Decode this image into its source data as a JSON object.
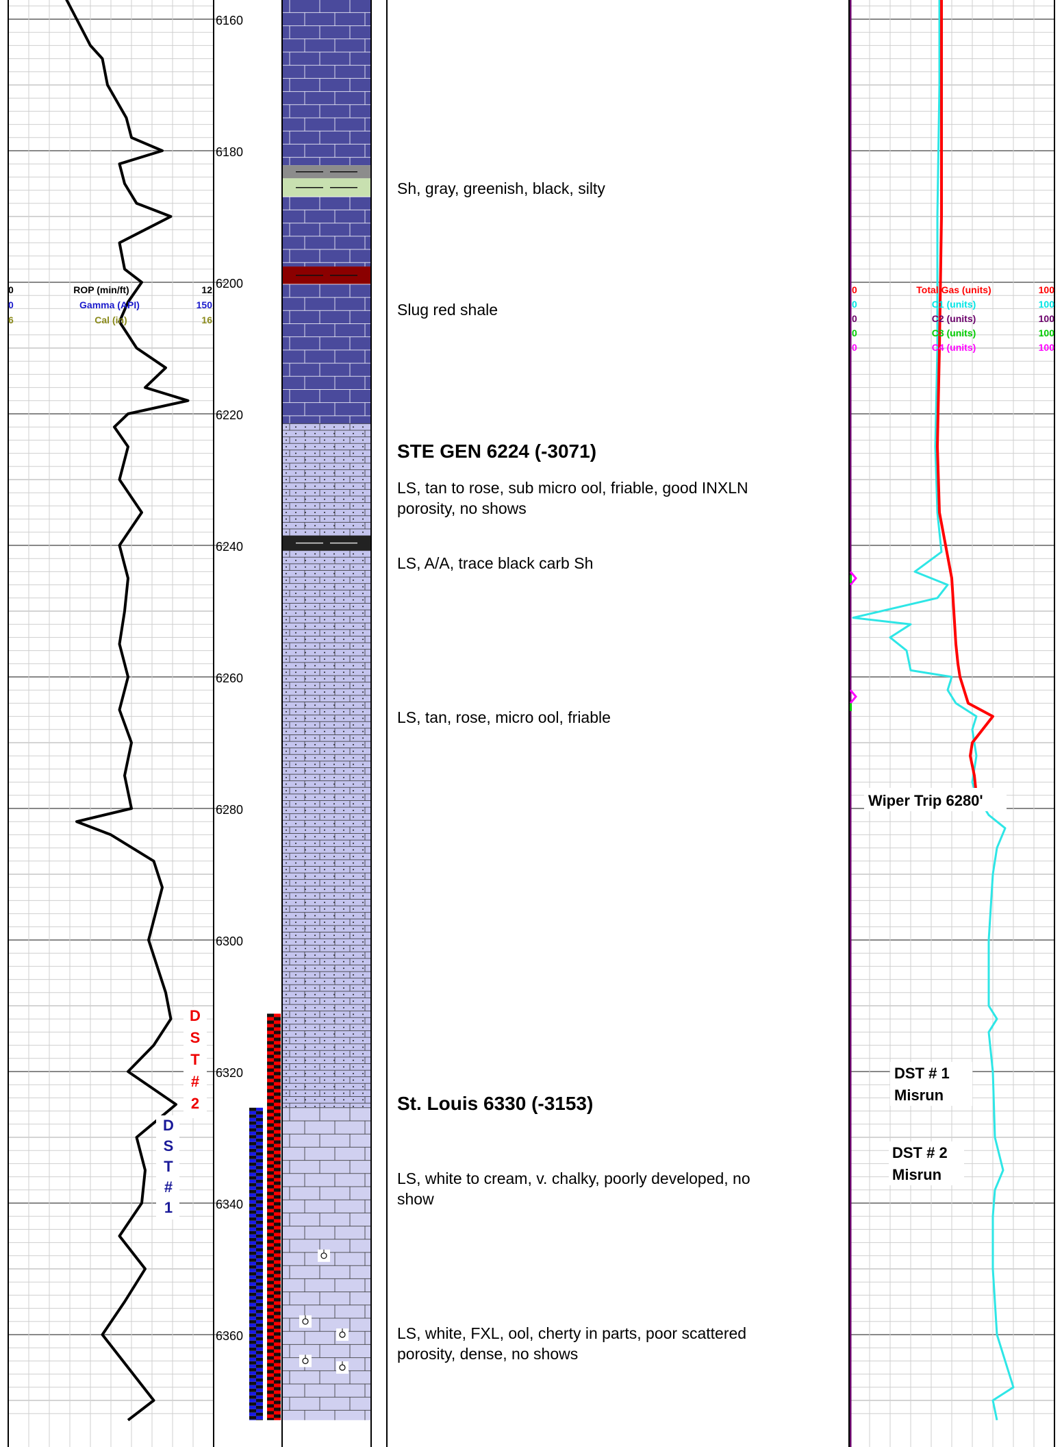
{
  "depth_track": {
    "labels": [
      "6160",
      "6180",
      "6200",
      "6220",
      "6240",
      "6260",
      "6280",
      "6300",
      "6320",
      "6340",
      "6360"
    ]
  },
  "scales_left": [
    {
      "min": "0",
      "label": "ROP (min/ft)",
      "max": "12",
      "color": "#000000"
    },
    {
      "min": "0",
      "label": "Gamma (API)",
      "max": "150",
      "color": "#1a1acc"
    },
    {
      "min": "6",
      "label": "Cal (in)",
      "max": "16",
      "color": "#8a8a1a"
    }
  ],
  "scales_right": [
    {
      "min": "0",
      "label": "Total Gas (units)",
      "max": "100",
      "color": "#ff0000"
    },
    {
      "min": "0",
      "label": "C1 (units)",
      "max": "100",
      "color": "#00e5e5"
    },
    {
      "min": "0",
      "label": "C2 (units)",
      "max": "100",
      "color": "#6a006a"
    },
    {
      "min": "0",
      "label": "C3 (units)",
      "max": "100",
      "color": "#00cc00"
    },
    {
      "min": "0",
      "label": "C4 (units)",
      "max": "100",
      "color": "#ff00ff"
    }
  ],
  "dst_labels": [
    {
      "letters": [
        "D",
        "S",
        "T",
        "#",
        "2"
      ],
      "color": "#ee0000"
    },
    {
      "letters": [
        "D",
        "S",
        "T",
        "#",
        "1"
      ],
      "color": "#1a1a99"
    }
  ],
  "lithology_colors": {
    "limestone": "#4a4a9c",
    "shale_gray": "#8c8c8c",
    "shale_green": "#c8e0b0",
    "shale_red": "#8b0000",
    "dolomitic_ls": "#c4c4ee",
    "shale_black": "#222222",
    "limestone_light": "#d0d0f0"
  },
  "descriptions": [
    {
      "text": "Sh, gray, greenish, black, silty",
      "bold": false
    },
    {
      "text": "Slug red shale",
      "bold": false
    },
    {
      "text": "STE GEN 6224 (-3071)",
      "bold": true
    },
    {
      "text": "LS, tan to rose, sub micro ool, friable, good INXLN",
      "bold": false
    },
    {
      "text": "porosity, no shows",
      "bold": false
    },
    {
      "text": "LS, A/A, trace black carb Sh",
      "bold": false
    },
    {
      "text": "LS, tan, rose, micro ool, friable",
      "bold": false
    },
    {
      "text": "St. Louis 6330 (-3153)",
      "bold": true
    },
    {
      "text": "LS, white to cream, v. chalky, poorly developed, no",
      "bold": false
    },
    {
      "text": "show",
      "bold": false
    },
    {
      "text": "LS, white, FXL, ool, cherty in parts, poor scattered",
      "bold": false
    },
    {
      "text": "porosity, dense, no shows",
      "bold": false
    }
  ],
  "annotations": [
    "Wiper Trip 6280'",
    "DST # 1",
    "Misrun",
    "DST # 2",
    "Misrun"
  ],
  "chart_data": {
    "type": "line",
    "title": "",
    "xlabel": "",
    "ylabel": "",
    "depth_range": [
      6153,
      6373
    ],
    "series": [
      {
        "name": "ROP (min/ft)",
        "scale": [
          0,
          12
        ],
        "depth": [
          6153,
          6156,
          6160,
          6164,
          6166,
          6170,
          6175,
          6178,
          6180,
          6182,
          6185,
          6188,
          6190,
          6192,
          6194,
          6198,
          6200,
          6203,
          6206,
          6210,
          6213,
          6216,
          6218,
          6220,
          6222,
          6225,
          6230,
          6235,
          6240,
          6245,
          6250,
          6255,
          6260,
          6265,
          6270,
          6275,
          6280,
          6282,
          6284,
          6288,
          6292,
          6300,
          6308,
          6312,
          6316,
          6320,
          6325,
          6330,
          6335,
          6340,
          6345,
          6350,
          6355,
          6360,
          6365,
          6370,
          6373
        ],
        "values": [
          3.5,
          3.2,
          4.0,
          4.8,
          5.5,
          5.8,
          6.9,
          7.2,
          9.0,
          6.5,
          6.8,
          7.5,
          9.5,
          8.0,
          6.5,
          6.8,
          7.8,
          7.0,
          6.5,
          7.5,
          9.2,
          8.0,
          10.5,
          7.0,
          6.2,
          7.0,
          6.5,
          7.8,
          6.5,
          7.0,
          6.8,
          6.5,
          7.0,
          6.5,
          7.2,
          6.8,
          7.2,
          4.0,
          6.0,
          8.5,
          9.0,
          8.2,
          9.2,
          9.5,
          8.5,
          7.0,
          9.8,
          7.5,
          8.0,
          7.8,
          6.5,
          8.0,
          6.8,
          5.5,
          7.0,
          8.5,
          7.0
        ]
      },
      {
        "name": "Total Gas (units)",
        "scale": [
          0,
          100
        ],
        "depth": [
          6153,
          6170,
          6190,
          6210,
          6225,
          6235,
          6240,
          6245,
          6250,
          6255,
          6258,
          6260,
          6262,
          6264,
          6266,
          6270,
          6272,
          6275,
          6278
        ],
        "values": [
          45,
          45,
          45,
          44,
          43,
          44,
          47,
          50,
          51,
          52,
          53,
          54,
          56,
          58,
          70,
          60,
          59,
          61,
          62
        ]
      },
      {
        "name": "C1 (units)",
        "scale": [
          0,
          100
        ],
        "depth": [
          6153,
          6170,
          6190,
          6210,
          6225,
          6235,
          6241,
          6244,
          6246,
          6248,
          6251,
          6252,
          6254,
          6256,
          6259,
          6260,
          6262,
          6264,
          6266,
          6268,
          6272,
          6276,
          6278,
          6281,
          6283,
          6286,
          6290,
          6300,
          6310,
          6312,
          6314,
          6320,
          6330,
          6335,
          6338,
          6342,
          6350,
          6360,
          6368,
          6370,
          6373
        ],
        "values": [
          44,
          44,
          43,
          43,
          42,
          43,
          45,
          32,
          48,
          43,
          2,
          30,
          20,
          28,
          30,
          50,
          48,
          52,
          62,
          60,
          62,
          60,
          62,
          68,
          76,
          72,
          70,
          68,
          68,
          72,
          68,
          70,
          71,
          75,
          71,
          70,
          70,
          72,
          80,
          70,
          72
        ]
      }
    ]
  }
}
